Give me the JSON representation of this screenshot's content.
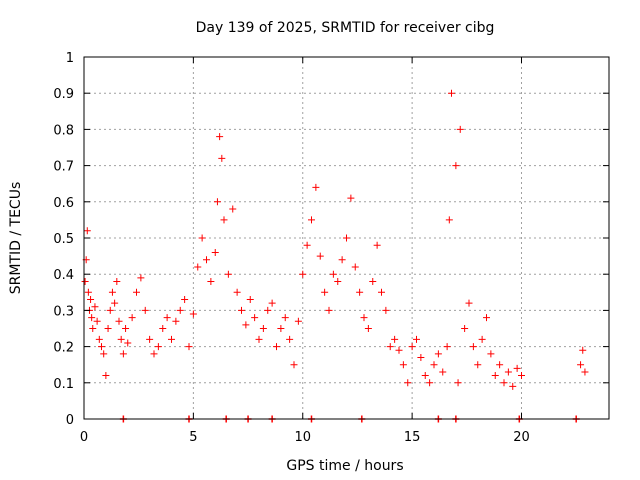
{
  "chart_data": {
    "type": "scatter",
    "title": "Day 139 of 2025, SRMTID for receiver cibg",
    "xlabel": "GPS time / hours",
    "ylabel": "SRMTID / TECUs",
    "xlim": [
      0,
      24
    ],
    "ylim": [
      0,
      1
    ],
    "xticks": [
      0,
      5,
      10,
      15,
      20
    ],
    "xtick_labels": [
      "0",
      "5",
      "10",
      "15",
      "20"
    ],
    "yticks": [
      0,
      0.1,
      0.2,
      0.3,
      0.4,
      0.5,
      0.6,
      0.7,
      0.8,
      0.9,
      1
    ],
    "ytick_labels": [
      "0",
      "0.1",
      "0.2",
      "0.3",
      "0.4",
      "0.5",
      "0.6",
      "0.7",
      "0.8",
      "0.9",
      "1"
    ],
    "grid": true,
    "marker": "+",
    "color": "#ff0000",
    "series": [
      {
        "name": "SRMTID",
        "x": [
          0.05,
          0.1,
          0.15,
          0.2,
          0.25,
          0.3,
          0.35,
          0.4,
          0.5,
          0.6,
          0.7,
          0.8,
          0.9,
          1.0,
          1.1,
          1.2,
          1.3,
          1.4,
          1.5,
          1.6,
          1.7,
          1.8,
          1.9,
          2.0,
          2.2,
          2.4,
          2.6,
          2.8,
          3.0,
          3.2,
          3.4,
          3.6,
          3.8,
          4.0,
          4.2,
          4.4,
          4.6,
          4.8,
          5.0,
          5.2,
          5.4,
          5.6,
          5.8,
          6.0,
          6.1,
          6.2,
          6.3,
          6.4,
          6.6,
          6.8,
          7.0,
          7.2,
          7.4,
          7.6,
          7.8,
          8.0,
          8.2,
          8.4,
          8.6,
          8.8,
          9.0,
          9.2,
          9.4,
          9.6,
          9.8,
          10.0,
          10.2,
          10.4,
          10.6,
          10.8,
          11.0,
          11.2,
          11.4,
          11.6,
          11.8,
          12.0,
          12.2,
          12.4,
          12.6,
          12.8,
          13.0,
          13.2,
          13.4,
          13.6,
          13.8,
          14.0,
          14.2,
          14.4,
          14.6,
          14.8,
          15.0,
          15.2,
          15.4,
          15.6,
          15.8,
          16.0,
          16.2,
          16.4,
          16.6,
          16.7,
          16.8,
          17.0,
          17.1,
          17.2,
          17.4,
          17.6,
          17.8,
          18.0,
          18.2,
          18.4,
          18.6,
          18.8,
          19.0,
          19.2,
          19.4,
          19.6,
          19.8,
          20.0,
          22.7,
          22.8,
          22.9
        ],
        "y": [
          0.38,
          0.44,
          0.52,
          0.35,
          0.3,
          0.33,
          0.28,
          0.25,
          0.31,
          0.27,
          0.22,
          0.2,
          0.18,
          0.12,
          0.25,
          0.3,
          0.35,
          0.32,
          0.38,
          0.27,
          0.22,
          0.18,
          0.25,
          0.21,
          0.28,
          0.35,
          0.39,
          0.3,
          0.22,
          0.18,
          0.2,
          0.25,
          0.28,
          0.22,
          0.27,
          0.3,
          0.33,
          0.2,
          0.29,
          0.42,
          0.5,
          0.44,
          0.38,
          0.46,
          0.6,
          0.78,
          0.72,
          0.55,
          0.4,
          0.58,
          0.35,
          0.3,
          0.26,
          0.33,
          0.28,
          0.22,
          0.25,
          0.3,
          0.32,
          0.2,
          0.25,
          0.28,
          0.22,
          0.15,
          0.27,
          0.4,
          0.48,
          0.55,
          0.64,
          0.45,
          0.35,
          0.3,
          0.4,
          0.38,
          0.44,
          0.5,
          0.61,
          0.42,
          0.35,
          0.28,
          0.25,
          0.38,
          0.48,
          0.35,
          0.3,
          0.2,
          0.22,
          0.19,
          0.15,
          0.1,
          0.2,
          0.22,
          0.17,
          0.12,
          0.1,
          0.15,
          0.18,
          0.13,
          0.2,
          0.55,
          0.9,
          0.7,
          0.1,
          0.8,
          0.25,
          0.32,
          0.2,
          0.15,
          0.22,
          0.28,
          0.18,
          0.12,
          0.15,
          0.1,
          0.13,
          0.09,
          0.14,
          0.12,
          0.15,
          0.19,
          0.13
        ]
      }
    ],
    "zero_markers_x": [
      1.8,
      4.8,
      6.5,
      7.5,
      8.6,
      10.4,
      12.7,
      16.2,
      17.0,
      19.9,
      22.5
    ]
  }
}
